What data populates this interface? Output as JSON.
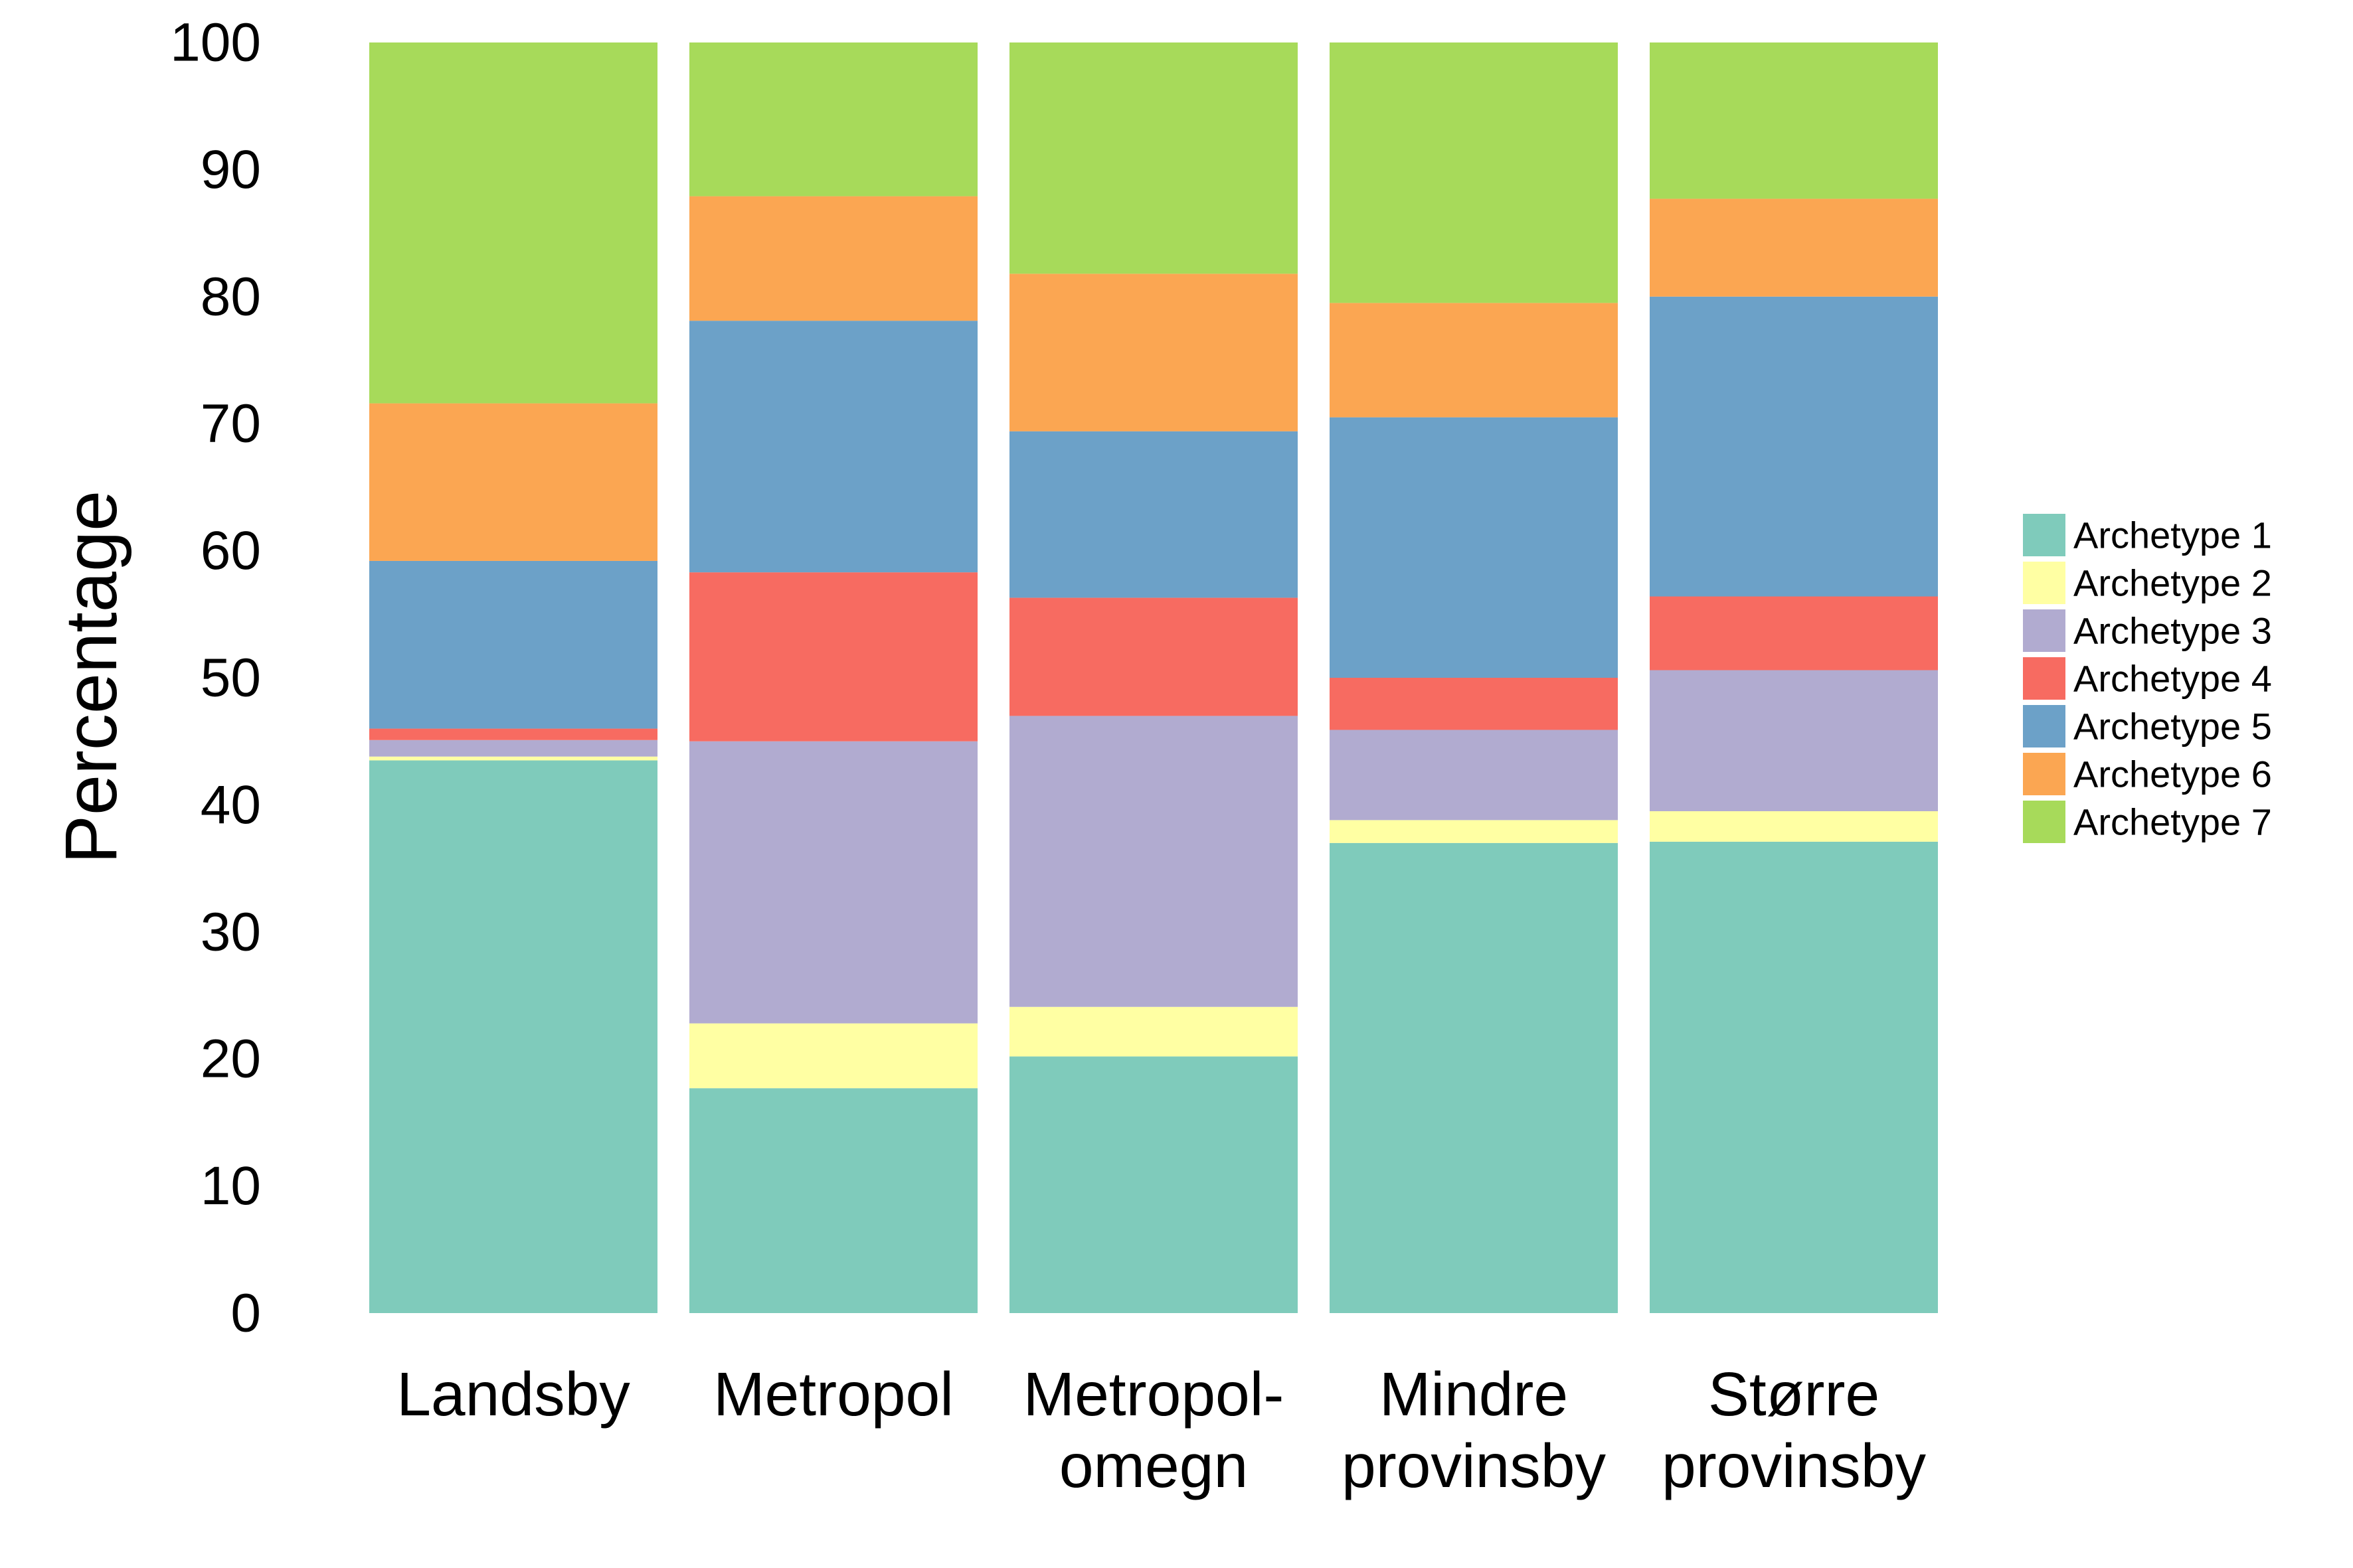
{
  "chart_data": {
    "type": "bar",
    "stacked": true,
    "title": "",
    "xlabel": "",
    "ylabel": "Percentage",
    "ylim": [
      0,
      100
    ],
    "yticks": [
      0,
      10,
      20,
      30,
      40,
      50,
      60,
      70,
      80,
      90,
      100
    ],
    "grid": false,
    "legend_position": "right",
    "categories": [
      [
        "Landsby"
      ],
      [
        "Metropol"
      ],
      [
        "Metropol-",
        "omegn"
      ],
      [
        "Mindre",
        "provinsby"
      ],
      [
        "Større",
        "provinsby"
      ]
    ],
    "series": [
      {
        "name": "Archetype 1",
        "color": "#7fcbbb",
        "values": [
          43.5,
          17.7,
          20.2,
          37.0,
          37.1
        ]
      },
      {
        "name": "Archetype 2",
        "color": "#ffffa3",
        "values": [
          0.3,
          5.1,
          3.9,
          1.8,
          2.4
        ]
      },
      {
        "name": "Archetype 3",
        "color": "#b1abd0",
        "values": [
          1.3,
          22.2,
          22.9,
          7.1,
          11.1
        ]
      },
      {
        "name": "Archetype 4",
        "color": "#f76b61",
        "values": [
          0.9,
          13.3,
          9.3,
          4.1,
          5.8
        ]
      },
      {
        "name": "Archetype 5",
        "color": "#6ca1c8",
        "values": [
          13.2,
          19.8,
          13.1,
          20.5,
          23.6
        ]
      },
      {
        "name": "Archetype 6",
        "color": "#fba652",
        "values": [
          12.4,
          9.8,
          12.4,
          9.0,
          7.7
        ]
      },
      {
        "name": "Archetype 7",
        "color": "#a7da5a",
        "values": [
          28.4,
          12.1,
          18.2,
          20.5,
          12.3
        ]
      }
    ]
  }
}
